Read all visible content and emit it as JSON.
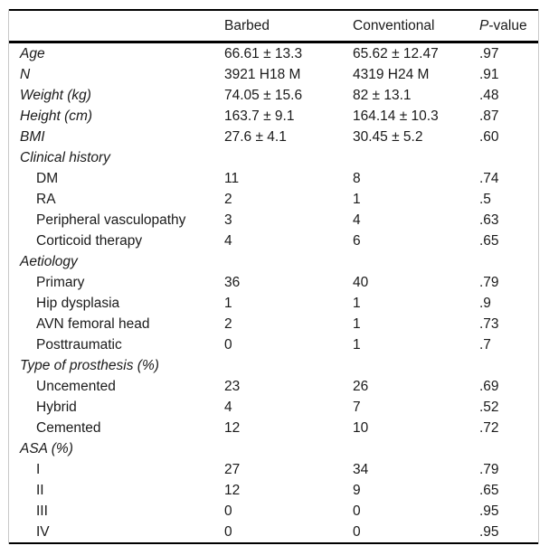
{
  "table": {
    "header": {
      "col1": "",
      "barbed": "Barbed",
      "conventional": "Conventional",
      "p_italic": "P",
      "p_rest": "-value"
    },
    "rows": [
      {
        "label": "Age",
        "style": "category",
        "barbed": "66.61 ± 13.3",
        "conventional": "65.62 ± 12.47",
        "p": ".97"
      },
      {
        "label": "N",
        "style": "category",
        "barbed": "3921 H18 M",
        "conventional": "4319 H24 M",
        "p": ".91"
      },
      {
        "label": "Weight (kg)",
        "style": "category",
        "barbed": "74.05 ± 15.6",
        "conventional": "82 ± 13.1",
        "p": ".48"
      },
      {
        "label": "Height (cm)",
        "style": "category",
        "barbed": "163.7 ± 9.1",
        "conventional": "164.14 ± 10.3",
        "p": ".87"
      },
      {
        "label": "BMI",
        "style": "category",
        "barbed": "27.6 ± 4.1",
        "conventional": "30.45 ± 5.2",
        "p": ".60"
      },
      {
        "label": "Clinical history",
        "style": "section",
        "barbed": "",
        "conventional": "",
        "p": ""
      },
      {
        "label": "DM",
        "style": "sub",
        "barbed": "11",
        "conventional": "8",
        "p": ".74"
      },
      {
        "label": "RA",
        "style": "sub",
        "barbed": "2",
        "conventional": "1",
        "p": ".5"
      },
      {
        "label": "Peripheral vasculopathy",
        "style": "sub",
        "barbed": "3",
        "conventional": "4",
        "p": ".63"
      },
      {
        "label": "Corticoid therapy",
        "style": "sub",
        "barbed": "4",
        "conventional": "6",
        "p": ".65"
      },
      {
        "label": "Aetiology",
        "style": "section",
        "barbed": "",
        "conventional": "",
        "p": ""
      },
      {
        "label": "Primary",
        "style": "sub",
        "barbed": "36",
        "conventional": "40",
        "p": ".79"
      },
      {
        "label": "Hip dysplasia",
        "style": "sub",
        "barbed": "1",
        "conventional": "1",
        "p": ".9"
      },
      {
        "label": "AVN femoral head",
        "style": "sub",
        "barbed": "2",
        "conventional": "1",
        "p": ".73"
      },
      {
        "label": "Posttraumatic",
        "style": "sub",
        "barbed": "0",
        "conventional": "1",
        "p": ".7"
      },
      {
        "label": "Type of prosthesis (%)",
        "style": "section",
        "barbed": "",
        "conventional": "",
        "p": ""
      },
      {
        "label": "Uncemented",
        "style": "sub",
        "barbed": "23",
        "conventional": "26",
        "p": ".69"
      },
      {
        "label": "Hybrid",
        "style": "sub",
        "barbed": "4",
        "conventional": "7",
        "p": ".52"
      },
      {
        "label": "Cemented",
        "style": "sub",
        "barbed": "12",
        "conventional": "10",
        "p": ".72"
      },
      {
        "label": "ASA (%)",
        "style": "section",
        "barbed": "",
        "conventional": "",
        "p": ""
      },
      {
        "label": "I",
        "style": "sub",
        "barbed": "27",
        "conventional": "34",
        "p": ".79"
      },
      {
        "label": "II",
        "style": "sub",
        "barbed": "12",
        "conventional": "9",
        "p": ".65"
      },
      {
        "label": "III",
        "style": "sub",
        "barbed": "0",
        "conventional": "0",
        "p": ".95"
      },
      {
        "label": "IV",
        "style": "sub",
        "barbed": "0",
        "conventional": "0",
        "p": ".95"
      }
    ]
  }
}
